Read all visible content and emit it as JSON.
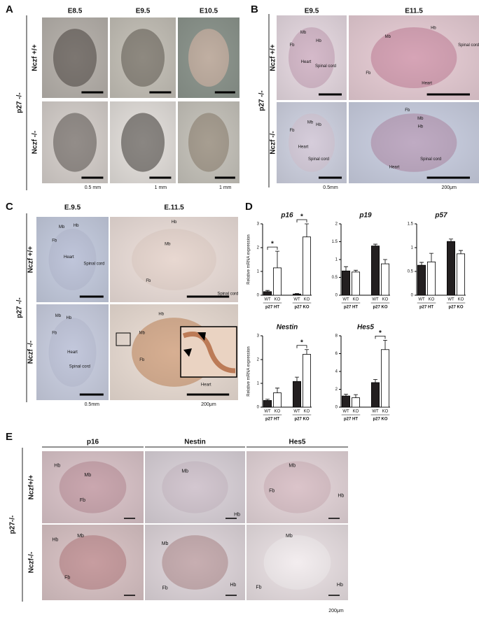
{
  "panels": {
    "A": {
      "label": "A",
      "genotype": "p27 -/-",
      "rows": [
        "Nczf +/+",
        "Nczf -/-"
      ],
      "columns": [
        "E8.5",
        "E9.5",
        "E10.5"
      ],
      "scale_bars": [
        "0.5 mm",
        "1 mm",
        "1 mm"
      ]
    },
    "B": {
      "label": "B",
      "genotype": "p27 -/-",
      "rows": [
        "Nczf +/+",
        "Nczf -/-"
      ],
      "columns": [
        "E9.5",
        "E11.5"
      ],
      "images": [
        {
          "labels": [
            "Mb",
            "Fb",
            "Hb",
            "Heart",
            "Spinal cord"
          ]
        },
        {
          "labels": [
            "Mb",
            "Hb",
            "Fb",
            "Spinal cord",
            "Heart"
          ]
        },
        {
          "labels": [
            "Fb",
            "Mb",
            "Hb",
            "Heart",
            "Spinal cord"
          ]
        },
        {
          "labels": [
            "Fb",
            "Mb",
            "Hb",
            "Heart",
            "Spinal cord"
          ]
        }
      ],
      "scale_bars": [
        "0.5mm",
        "200μm"
      ]
    },
    "C": {
      "label": "C",
      "genotype": "p27 -/-",
      "rows": [
        "Nczf +/+",
        "Nczf -/-"
      ],
      "columns": [
        "E.9.5",
        "E.11.5"
      ],
      "images": [
        {
          "labels": [
            "Mb",
            "Hb",
            "Fb",
            "Heart",
            "Spinal cord"
          ]
        },
        {
          "labels": [
            "Hb",
            "Mb",
            "Fb",
            "Spinal cord"
          ]
        },
        {
          "labels": [
            "Mb",
            "Hb",
            "Fb",
            "Heart",
            "Spinal cord"
          ]
        },
        {
          "labels": [
            "Hb",
            "Mb",
            "Fb",
            "Heart"
          ]
        }
      ],
      "scale_bars": [
        "0.5mm",
        "200μm"
      ]
    },
    "D": {
      "label": "D"
    },
    "E": {
      "label": "E",
      "genotype": "p27-/-",
      "rows": [
        "Nczf+/+",
        "Nczf-/-"
      ],
      "columns": [
        "p16",
        "Nestin",
        "Hes5"
      ],
      "images": [
        {
          "labels": [
            "Hb",
            "Mb",
            "Fb"
          ]
        },
        {
          "labels": [
            "Mb",
            "Hb"
          ]
        },
        {
          "labels": [
            "Mb",
            "Fb",
            "Hb"
          ]
        },
        {
          "labels": [
            "Hb",
            "Mb",
            "Fb"
          ]
        },
        {
          "labels": [
            "Mb",
            "Fb",
            "Hb"
          ]
        },
        {
          "labels": [
            "Mb",
            "Fb",
            "Hb"
          ]
        }
      ],
      "scale_bar": "200μm"
    }
  },
  "chart_data": [
    {
      "type": "bar",
      "title": "p16",
      "y_label": "Relative mRNA expression",
      "categories": [
        "WT",
        "KO",
        "WT",
        "KO"
      ],
      "groups": [
        "p27 HT",
        "p27 KO"
      ],
      "values": [
        0.15,
        1.15,
        0.05,
        2.45
      ],
      "errors": [
        0.05,
        0.7,
        0.02,
        0.55
      ],
      "colors": [
        "#231f20",
        "#ffffff",
        "#231f20",
        "#ffffff"
      ],
      "ylim": [
        0,
        3
      ],
      "yticks": [
        0,
        1,
        2,
        3
      ],
      "annotations": [
        "*",
        "*"
      ]
    },
    {
      "type": "bar",
      "title": "p19",
      "categories": [
        "WT",
        "KO",
        "WT",
        "KO"
      ],
      "groups": [
        "p27 HT",
        "p27 KO"
      ],
      "values": [
        0.68,
        0.65,
        1.38,
        0.88
      ],
      "errors": [
        0.12,
        0.05,
        0.05,
        0.12
      ],
      "colors": [
        "#231f20",
        "#ffffff",
        "#231f20",
        "#ffffff"
      ],
      "ylim": [
        0,
        2
      ],
      "yticks": [
        0,
        0.5,
        1,
        1.5,
        2
      ]
    },
    {
      "type": "bar",
      "title": "p57",
      "categories": [
        "WT",
        "KO",
        "WT",
        "KO"
      ],
      "groups": [
        "p27 HT",
        "p27 KO"
      ],
      "values": [
        0.63,
        0.7,
        1.13,
        0.87
      ],
      "errors": [
        0.06,
        0.18,
        0.05,
        0.07
      ],
      "colors": [
        "#231f20",
        "#ffffff",
        "#231f20",
        "#ffffff"
      ],
      "ylim": [
        0,
        1.5
      ],
      "yticks": [
        0,
        0.5,
        1,
        1.5
      ]
    },
    {
      "type": "bar",
      "title": "Nestin",
      "y_label": "Relative mRNA expression",
      "categories": [
        "WT",
        "KO",
        "WT",
        "KO"
      ],
      "groups": [
        "p27 HT",
        "p27 KO"
      ],
      "values": [
        0.28,
        0.6,
        1.08,
        2.22
      ],
      "errors": [
        0.05,
        0.2,
        0.18,
        0.2
      ],
      "colors": [
        "#231f20",
        "#ffffff",
        "#231f20",
        "#ffffff"
      ],
      "ylim": [
        0,
        3
      ],
      "yticks": [
        0,
        1,
        2,
        3
      ],
      "annotations": [
        "*"
      ]
    },
    {
      "type": "bar",
      "title": "Hes5",
      "categories": [
        "WT",
        "KO",
        "WT",
        "KO"
      ],
      "groups": [
        "p27 HT",
        "p27 KO"
      ],
      "values": [
        1.25,
        1.05,
        2.75,
        6.45
      ],
      "errors": [
        0.2,
        0.35,
        0.35,
        1.05
      ],
      "colors": [
        "#231f20",
        "#ffffff",
        "#231f20",
        "#ffffff"
      ],
      "ylim": [
        0,
        8
      ],
      "yticks": [
        0,
        2,
        4,
        6,
        8
      ],
      "annotations": [
        "*"
      ]
    }
  ]
}
